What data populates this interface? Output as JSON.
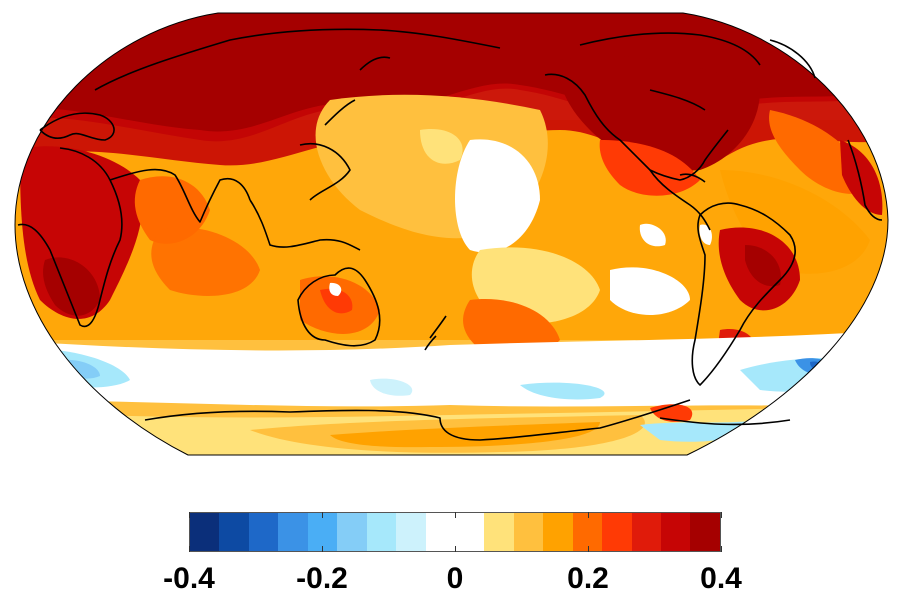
{
  "map": {
    "projection": "Robinson",
    "variable": "surface temperature trend anomaly",
    "outline_color": "#000000",
    "background_color": "#ffffff"
  },
  "colorbar": {
    "min": -0.4,
    "max": 0.4,
    "ticks": [
      {
        "value": -0.4,
        "label": "-0.4"
      },
      {
        "value": -0.2,
        "label": "-0.2"
      },
      {
        "value": 0,
        "label": "0"
      },
      {
        "value": 0.2,
        "label": "0.2"
      },
      {
        "value": 0.4,
        "label": "0.4"
      }
    ],
    "bins": [
      {
        "from": -0.4,
        "to": -0.35,
        "color": "#0b2f7a"
      },
      {
        "from": -0.35,
        "to": -0.3,
        "color": "#0d4aa3"
      },
      {
        "from": -0.3,
        "to": -0.25,
        "color": "#1e68c8"
      },
      {
        "from": -0.25,
        "to": -0.2,
        "color": "#3b92e6"
      },
      {
        "from": -0.2,
        "to": -0.15,
        "color": "#4aaef5"
      },
      {
        "from": -0.15,
        "to": -0.1,
        "color": "#84cdf7"
      },
      {
        "from": -0.1,
        "to": -0.05,
        "color": "#a6e8fb"
      },
      {
        "from": -0.05,
        "to": 0.0,
        "color": "#cdf2fc"
      },
      {
        "from": 0.0,
        "to": 0.05,
        "color": "#ffffff"
      },
      {
        "from": 0.05,
        "to": 0.1,
        "color": "#ffffff"
      },
      {
        "from": 0.1,
        "to": 0.15,
        "color": "#ffe27a"
      },
      {
        "from": 0.15,
        "to": 0.2,
        "color": "#ffc03e"
      },
      {
        "from": 0.2,
        "to": 0.25,
        "color": "#ffa200"
      },
      {
        "from": 0.25,
        "to": 0.3,
        "color": "#ff6a00"
      },
      {
        "from": 0.3,
        "to": 0.35,
        "color": "#ff3a05"
      },
      {
        "from": 0.35,
        "to": 0.4,
        "color": "#e01b0a"
      },
      {
        "from": 0.4,
        "to": 0.45,
        "color": "#c60505"
      },
      {
        "from": 0.45,
        "to": 0.5,
        "color": "#a50000"
      }
    ]
  }
}
